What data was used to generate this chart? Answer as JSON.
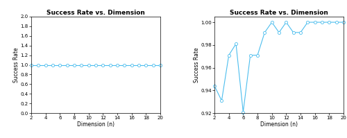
{
  "title": "Success Rate vs. Dimension",
  "xlabel": "Dimension (n)",
  "ylabel": "Success Rate",
  "left": {
    "x": [
      2,
      3,
      4,
      5,
      6,
      7,
      8,
      9,
      10,
      11,
      12,
      13,
      14,
      15,
      16,
      17,
      18,
      19,
      20
    ],
    "y": [
      1.0,
      1.0,
      1.0,
      1.0,
      1.0,
      1.0,
      1.0,
      1.0,
      1.0,
      1.0,
      1.0,
      1.0,
      1.0,
      1.0,
      1.0,
      1.0,
      1.0,
      1.0,
      1.0
    ],
    "ylim": [
      0,
      2
    ],
    "yticks": [
      0,
      0.2,
      0.4,
      0.6,
      0.8,
      1.0,
      1.2,
      1.4,
      1.6,
      1.8,
      2.0
    ],
    "xlim": [
      2,
      20
    ],
    "xticks": [
      2,
      4,
      6,
      8,
      10,
      12,
      14,
      16,
      18,
      20
    ]
  },
  "right": {
    "x": [
      2,
      3,
      4,
      5,
      6,
      7,
      8,
      9,
      10,
      11,
      12,
      13,
      14,
      15,
      16,
      17,
      18,
      19,
      20
    ],
    "y": [
      0.944,
      0.931,
      0.971,
      0.981,
      0.921,
      0.971,
      0.971,
      0.991,
      1.0,
      0.991,
      1.0,
      0.991,
      0.991,
      1.0,
      1.0,
      1.0,
      1.0,
      1.0,
      1.0
    ],
    "ylim": [
      0.92,
      1.005
    ],
    "yticks": [
      0.92,
      0.94,
      0.96,
      0.98,
      1.0
    ],
    "xlim": [
      2,
      20
    ],
    "xticks": [
      2,
      4,
      6,
      8,
      10,
      12,
      14,
      16,
      18,
      20
    ]
  },
  "line_color": "#4DBEEE",
  "marker": "o",
  "marker_facecolor": "white",
  "marker_edgecolor": "#4DBEEE",
  "linewidth": 0.8,
  "markersize": 3.0,
  "title_fontsize": 6.5,
  "label_fontsize": 5.5,
  "tick_fontsize": 5.0,
  "bg_color": "#ffffff"
}
